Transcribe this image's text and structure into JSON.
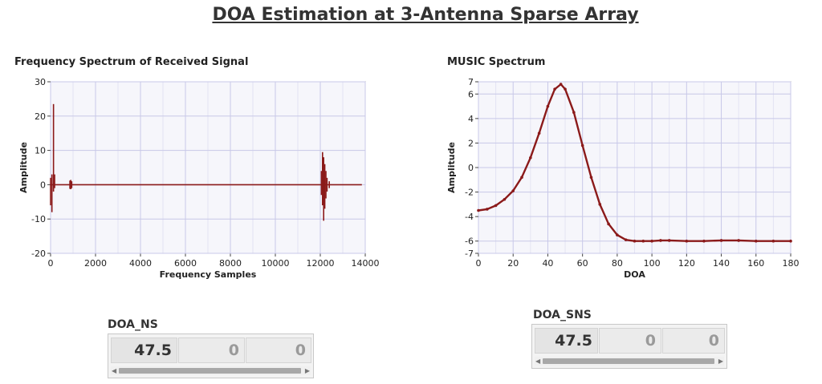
{
  "page": {
    "title": "DOA Estimation at 3-Antenna Sparse Array"
  },
  "chart_data": [
    {
      "id": "freq",
      "type": "line",
      "title": "Frequency Spectrum of Received Signal",
      "xlabel": "Frequency Samples",
      "ylabel": "Amplitude",
      "xlim": [
        0,
        14000
      ],
      "ylim": [
        -20,
        30
      ],
      "xticks": [
        0,
        2000,
        4000,
        6000,
        8000,
        10000,
        12000,
        14000
      ],
      "yticks": [
        -20,
        -10,
        0,
        10,
        20,
        30
      ],
      "grid": true,
      "color": "#8b1a1a",
      "spikes": [
        {
          "x": 0,
          "min": -6,
          "max": 2
        },
        {
          "x": 60,
          "min": -8,
          "max": 3
        },
        {
          "x": 130,
          "min": -2,
          "max": 23.5
        },
        {
          "x": 180,
          "min": -1,
          "max": 3
        },
        {
          "x": 860,
          "min": -1.2,
          "max": 1.2
        },
        {
          "x": 900,
          "min": -1.3,
          "max": 1.4
        },
        {
          "x": 940,
          "min": -1.0,
          "max": 1.0
        },
        {
          "x": 12050,
          "min": -3,
          "max": 4
        },
        {
          "x": 12100,
          "min": -6,
          "max": 9.5
        },
        {
          "x": 12150,
          "min": -10.5,
          "max": 8
        },
        {
          "x": 12200,
          "min": -7,
          "max": 6
        },
        {
          "x": 12250,
          "min": -4,
          "max": 4
        },
        {
          "x": 12300,
          "min": -2,
          "max": 2
        },
        {
          "x": 12400,
          "min": -1,
          "max": 1
        }
      ],
      "end_x": 13850
    },
    {
      "id": "music",
      "type": "scatter",
      "title": "MUSIC Spectrum",
      "xlabel": "DOA",
      "ylabel": "Amplitude",
      "xlim": [
        0,
        180
      ],
      "ylim": [
        -7,
        7
      ],
      "xticks": [
        0,
        20,
        40,
        60,
        80,
        100,
        120,
        140,
        160,
        180
      ],
      "yticks": [
        -7,
        -6,
        -4,
        -2,
        0,
        2,
        4,
        6,
        7
      ],
      "grid": true,
      "color": "#8b1a1a",
      "x": [
        0,
        5,
        10,
        15,
        20,
        25,
        30,
        35,
        40,
        44,
        47.5,
        50,
        55,
        60,
        65,
        70,
        75,
        80,
        85,
        90,
        95,
        100,
        105,
        110,
        120,
        130,
        140,
        150,
        160,
        170,
        180
      ],
      "y": [
        -3.5,
        -3.4,
        -3.1,
        -2.6,
        -1.9,
        -0.8,
        0.8,
        2.8,
        5.0,
        6.4,
        6.8,
        6.4,
        4.5,
        1.8,
        -0.8,
        -3.0,
        -4.6,
        -5.5,
        -5.9,
        -6.0,
        -6.0,
        -6.0,
        -5.95,
        -5.95,
        -6.0,
        -6.0,
        -5.95,
        -5.95,
        -6.0,
        -6.0,
        -6.0
      ]
    }
  ],
  "indicators": [
    {
      "label": "DOA_NS",
      "values": [
        "47.5",
        "0",
        "0"
      ]
    },
    {
      "label": "DOA_SNS",
      "values": [
        "47.5",
        "0",
        "0"
      ]
    }
  ]
}
